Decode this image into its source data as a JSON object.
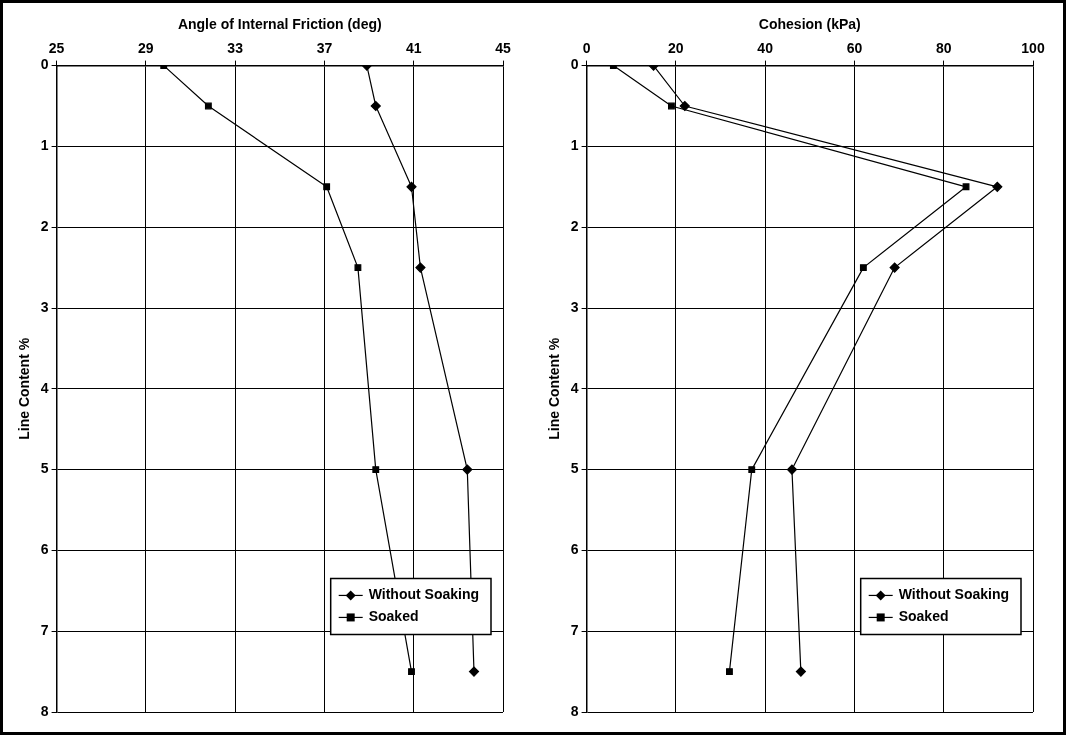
{
  "chart_data": [
    {
      "type": "line",
      "xlabel": "Angle of Internal Friction (deg)",
      "ylabel": "Line Content %",
      "xlim": [
        25,
        45
      ],
      "xticks": [
        25,
        29,
        33,
        37,
        41,
        45
      ],
      "ylim": [
        8,
        0
      ],
      "yticks": [
        0,
        1,
        2,
        3,
        4,
        5,
        6,
        7,
        8
      ],
      "grid": true,
      "legend": "bottom right",
      "series": [
        {
          "name": "Without Soaking",
          "color": "#000000",
          "marker": "diamond",
          "x": [
            38.9,
            39.3,
            40.9,
            41.3,
            43.4,
            43.7
          ],
          "values": [
            0,
            0.5,
            1.5,
            2.5,
            5,
            7.5
          ]
        },
        {
          "name": "Soaked",
          "color": "#000000",
          "marker": "square",
          "x": [
            29.8,
            31.8,
            37.1,
            38.5,
            39.3,
            40.9
          ],
          "values": [
            0,
            0.5,
            1.5,
            2.5,
            5,
            7.5
          ]
        }
      ]
    },
    {
      "type": "line",
      "xlabel": "Cohesion (kPa)",
      "ylabel": "Line Content %",
      "xlim": [
        0,
        100
      ],
      "xticks": [
        0,
        20,
        40,
        60,
        80,
        100
      ],
      "ylim": [
        8,
        0
      ],
      "yticks": [
        0,
        1,
        2,
        3,
        4,
        5,
        6,
        7,
        8
      ],
      "grid": true,
      "legend": "bottom right",
      "series": [
        {
          "name": "Without Soaking",
          "color": "#000000",
          "marker": "diamond",
          "x": [
            15,
            22,
            92,
            69,
            46,
            48
          ],
          "values": [
            0,
            0.5,
            1.5,
            2.5,
            5,
            7.5
          ]
        },
        {
          "name": "Soaked",
          "color": "#000000",
          "marker": "square",
          "x": [
            6,
            19,
            85,
            62,
            37,
            32
          ],
          "values": [
            0,
            0.5,
            1.5,
            2.5,
            5,
            7.5
          ]
        }
      ]
    }
  ]
}
